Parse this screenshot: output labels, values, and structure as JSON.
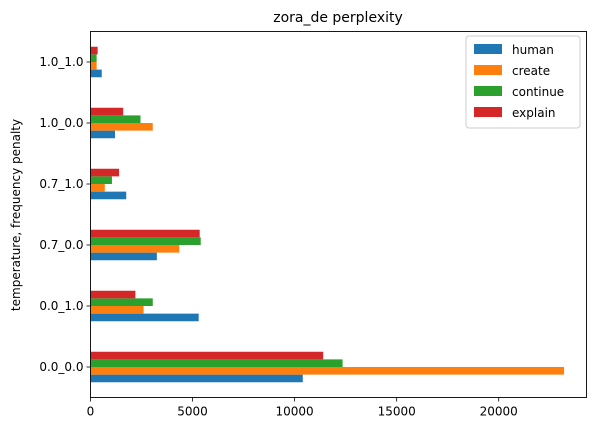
{
  "chart_data": {
    "type": "bar",
    "orientation": "horizontal",
    "title": "zora_de perplexity",
    "xlabel": "",
    "ylabel": "temperature, frequency penalty",
    "categories": [
      "0.0_0.0",
      "0.0_1.0",
      "0.7_0.0",
      "0.7_1.0",
      "1.0_0.0",
      "1.0_1.0"
    ],
    "series": [
      {
        "name": "human",
        "color": "#1f77b4",
        "values": [
          10400,
          5300,
          3250,
          1750,
          1200,
          550
        ]
      },
      {
        "name": "create",
        "color": "#ff7f0e",
        "values": [
          23200,
          2600,
          4350,
          700,
          3050,
          300
        ]
      },
      {
        "name": "continue",
        "color": "#2ca02c",
        "values": [
          12350,
          3050,
          5400,
          1050,
          2450,
          300
        ]
      },
      {
        "name": "explain",
        "color": "#d62728",
        "values": [
          11400,
          2200,
          5350,
          1400,
          1600,
          350
        ]
      }
    ],
    "xlim": [
      0,
      24300
    ],
    "xticks": [
      0,
      5000,
      10000,
      15000,
      20000
    ],
    "xtick_labels": [
      "0",
      "5000",
      "10000",
      "15000",
      "20000"
    ],
    "grid": false,
    "legend_position": "top-right"
  }
}
